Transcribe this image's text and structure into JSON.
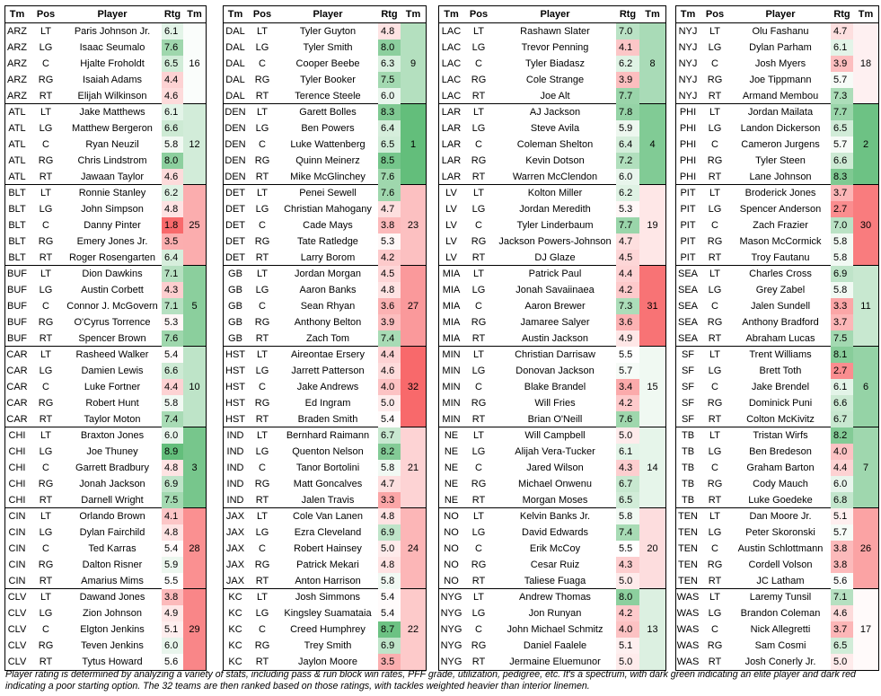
{
  "headers": {
    "tm": "Tm",
    "pos": "Pos",
    "player": "Player",
    "rtg": "Rtg",
    "rank": "Tm"
  },
  "columns": [
    [
      {
        "team": "ARZ",
        "rank": 16,
        "players": [
          [
            "LT",
            "Paris Johnson Jr.",
            "6.1"
          ],
          [
            "LG",
            "Isaac Seumalo",
            "7.6"
          ],
          [
            "C",
            "Hjalte Froholdt",
            "6.5"
          ],
          [
            "RG",
            "Isaiah Adams",
            "4.4"
          ],
          [
            "RT",
            "Elijah Wilkinson",
            "4.6"
          ]
        ]
      },
      {
        "team": "ATL",
        "rank": 12,
        "players": [
          [
            "LT",
            "Jake Matthews",
            "6.1"
          ],
          [
            "LG",
            "Matthew Bergeron",
            "6.6"
          ],
          [
            "C",
            "Ryan Neuzil",
            "5.8"
          ],
          [
            "RG",
            "Chris Lindstrom",
            "8.0"
          ],
          [
            "RT",
            "Jawaan Taylor",
            "4.6"
          ]
        ]
      },
      {
        "team": "BLT",
        "rank": 25,
        "players": [
          [
            "LT",
            "Ronnie Stanley",
            "6.2"
          ],
          [
            "LG",
            "John Simpson",
            "4.8"
          ],
          [
            "C",
            "Danny Pinter",
            "1.8"
          ],
          [
            "RG",
            "Emery Jones Jr.",
            "3.5"
          ],
          [
            "RT",
            "Roger Rosengarten",
            "6.4"
          ]
        ]
      },
      {
        "team": "BUF",
        "rank": 5,
        "players": [
          [
            "LT",
            "Dion Dawkins",
            "7.1"
          ],
          [
            "LG",
            "Austin Corbett",
            "4.3"
          ],
          [
            "C",
            "Connor J. McGovern",
            "7.1"
          ],
          [
            "RG",
            "O'Cyrus Torrence",
            "5.3"
          ],
          [
            "RT",
            "Spencer Brown",
            "7.6"
          ]
        ]
      },
      {
        "team": "CAR",
        "rank": 10,
        "players": [
          [
            "LT",
            "Rasheed Walker",
            "5.4"
          ],
          [
            "LG",
            "Damien Lewis",
            "6.6"
          ],
          [
            "C",
            "Luke Fortner",
            "4.4"
          ],
          [
            "RG",
            "Robert Hunt",
            "5.8"
          ],
          [
            "RT",
            "Taylor Moton",
            "7.4"
          ]
        ]
      },
      {
        "team": "CHI",
        "rank": 3,
        "players": [
          [
            "LT",
            "Braxton Jones",
            "6.0"
          ],
          [
            "LG",
            "Joe Thuney",
            "8.9"
          ],
          [
            "C",
            "Garrett Bradbury",
            "4.8"
          ],
          [
            "RG",
            "Jonah Jackson",
            "6.9"
          ],
          [
            "RT",
            "Darnell Wright",
            "7.5"
          ]
        ]
      },
      {
        "team": "CIN",
        "rank": 28,
        "players": [
          [
            "LT",
            "Orlando Brown",
            "4.1"
          ],
          [
            "LG",
            "Dylan Fairchild",
            "4.8"
          ],
          [
            "C",
            "Ted Karras",
            "5.4"
          ],
          [
            "RG",
            "Dalton Risner",
            "5.9"
          ],
          [
            "RT",
            "Amarius Mims",
            "5.5"
          ]
        ]
      },
      {
        "team": "CLV",
        "rank": 29,
        "players": [
          [
            "LT",
            "Dawand Jones",
            "3.8"
          ],
          [
            "LG",
            "Zion Johnson",
            "4.9"
          ],
          [
            "C",
            "Elgton Jenkins",
            "5.1"
          ],
          [
            "RG",
            "Teven Jenkins",
            "6.0"
          ],
          [
            "RT",
            "Tytus Howard",
            "5.6"
          ]
        ]
      }
    ],
    [
      {
        "team": "DAL",
        "rank": 9,
        "players": [
          [
            "LT",
            "Tyler Guyton",
            "4.8"
          ],
          [
            "LG",
            "Tyler Smith",
            "8.0"
          ],
          [
            "C",
            "Cooper Beebe",
            "6.3"
          ],
          [
            "RG",
            "Tyler Booker",
            "7.5"
          ],
          [
            "RT",
            "Terence Steele",
            "6.0"
          ]
        ]
      },
      {
        "team": "DEN",
        "rank": 1,
        "players": [
          [
            "LT",
            "Garett Bolles",
            "8.3"
          ],
          [
            "LG",
            "Ben Powers",
            "6.4"
          ],
          [
            "C",
            "Luke Wattenberg",
            "6.5"
          ],
          [
            "RG",
            "Quinn Meinerz",
            "8.5"
          ],
          [
            "RT",
            "Mike McGlinchey",
            "7.6"
          ]
        ]
      },
      {
        "team": "DET",
        "rank": 23,
        "players": [
          [
            "LT",
            "Penei Sewell",
            "7.6"
          ],
          [
            "LG",
            "Christian Mahogany",
            "4.7"
          ],
          [
            "C",
            "Cade Mays",
            "3.8"
          ],
          [
            "RG",
            "Tate Ratledge",
            "5.3"
          ],
          [
            "RT",
            "Larry Borom",
            "4.2"
          ]
        ]
      },
      {
        "team": "GB",
        "rank": 27,
        "players": [
          [
            "LT",
            "Jordan Morgan",
            "4.5"
          ],
          [
            "LG",
            "Aaron Banks",
            "4.8"
          ],
          [
            "C",
            "Sean Rhyan",
            "3.6"
          ],
          [
            "RG",
            "Anthony Belton",
            "3.9"
          ],
          [
            "RT",
            "Zach Tom",
            "7.4"
          ]
        ]
      },
      {
        "team": "HST",
        "rank": 32,
        "players": [
          [
            "LT",
            "Aireontae Ersery",
            "4.4"
          ],
          [
            "LG",
            "Jarrett Patterson",
            "4.6"
          ],
          [
            "C",
            "Jake Andrews",
            "4.0"
          ],
          [
            "RG",
            "Ed Ingram",
            "5.0"
          ],
          [
            "RT",
            "Braden Smith",
            "5.4"
          ]
        ]
      },
      {
        "team": "IND",
        "rank": 21,
        "players": [
          [
            "LT",
            "Bernhard Raimann",
            "6.7"
          ],
          [
            "LG",
            "Quenton Nelson",
            "8.2"
          ],
          [
            "C",
            "Tanor Bortolini",
            "5.8"
          ],
          [
            "RG",
            "Matt Goncalves",
            "4.7"
          ],
          [
            "RT",
            "Jalen Travis",
            "3.3"
          ]
        ]
      },
      {
        "team": "JAX",
        "rank": 24,
        "players": [
          [
            "LT",
            "Cole Van Lanen",
            "4.8"
          ],
          [
            "LG",
            "Ezra Cleveland",
            "6.9"
          ],
          [
            "C",
            "Robert Hainsey",
            "5.0"
          ],
          [
            "RG",
            "Patrick Mekari",
            "4.8"
          ],
          [
            "RT",
            "Anton Harrison",
            "5.8"
          ]
        ]
      },
      {
        "team": "KC",
        "rank": 22,
        "players": [
          [
            "LT",
            "Josh Simmons",
            "5.4"
          ],
          [
            "LG",
            "Kingsley Suamataia",
            "5.4"
          ],
          [
            "C",
            "Creed Humphrey",
            "8.7"
          ],
          [
            "RG",
            "Trey Smith",
            "6.9"
          ],
          [
            "RT",
            "Jaylon Moore",
            "3.5"
          ]
        ]
      }
    ],
    [
      {
        "team": "LAC",
        "rank": 8,
        "players": [
          [
            "LT",
            "Rashawn Slater",
            "7.0"
          ],
          [
            "LG",
            "Trevor Penning",
            "4.1"
          ],
          [
            "C",
            "Tyler Biadasz",
            "6.2"
          ],
          [
            "RG",
            "Cole Strange",
            "3.9"
          ],
          [
            "RT",
            "Joe Alt",
            "7.7"
          ]
        ]
      },
      {
        "team": "LAR",
        "rank": 4,
        "players": [
          [
            "LT",
            "AJ Jackson",
            "7.8"
          ],
          [
            "LG",
            "Steve Avila",
            "5.9"
          ],
          [
            "C",
            "Coleman Shelton",
            "6.4"
          ],
          [
            "RG",
            "Kevin Dotson",
            "7.2"
          ],
          [
            "RT",
            "Warren McClendon",
            "6.0"
          ]
        ]
      },
      {
        "team": "LV",
        "rank": 19,
        "players": [
          [
            "LT",
            "Kolton Miller",
            "6.2"
          ],
          [
            "LG",
            "Jordan Meredith",
            "5.3"
          ],
          [
            "C",
            "Tyler Linderbaum",
            "7.7"
          ],
          [
            "RG",
            "Jackson Powers-Johnson",
            "4.7"
          ],
          [
            "RT",
            "DJ Glaze",
            "4.5"
          ]
        ]
      },
      {
        "team": "MIA",
        "rank": 31,
        "players": [
          [
            "LT",
            "Patrick Paul",
            "4.4"
          ],
          [
            "LG",
            "Jonah Savaiinaea",
            "4.2"
          ],
          [
            "C",
            "Aaron Brewer",
            "7.3"
          ],
          [
            "RG",
            "Jamaree Salyer",
            "3.6"
          ],
          [
            "RT",
            "Austin Jackson",
            "4.9"
          ]
        ]
      },
      {
        "team": "MIN",
        "rank": 15,
        "players": [
          [
            "LT",
            "Christian Darrisaw",
            "5.5"
          ],
          [
            "LG",
            "Donovan Jackson",
            "5.7"
          ],
          [
            "C",
            "Blake Brandel",
            "3.4"
          ],
          [
            "RG",
            "Will Fries",
            "4.2"
          ],
          [
            "RT",
            "Brian O'Neill",
            "7.6"
          ]
        ]
      },
      {
        "team": "NE",
        "rank": 14,
        "players": [
          [
            "LT",
            "Will Campbell",
            "5.0"
          ],
          [
            "LG",
            "Alijah Vera-Tucker",
            "6.1"
          ],
          [
            "C",
            "Jared Wilson",
            "4.3"
          ],
          [
            "RG",
            "Michael Onwenu",
            "6.7"
          ],
          [
            "RT",
            "Morgan Moses",
            "6.5"
          ]
        ]
      },
      {
        "team": "NO",
        "rank": 20,
        "players": [
          [
            "LT",
            "Kelvin Banks Jr.",
            "5.8"
          ],
          [
            "LG",
            "David Edwards",
            "7.4"
          ],
          [
            "C",
            "Erik McCoy",
            "5.5"
          ],
          [
            "RG",
            "Cesar Ruiz",
            "4.3"
          ],
          [
            "RT",
            "Taliese Fuaga",
            "5.0"
          ]
        ]
      },
      {
        "team": "NYG",
        "rank": 13,
        "players": [
          [
            "LT",
            "Andrew Thomas",
            "8.0"
          ],
          [
            "LG",
            "Jon Runyan",
            "4.2"
          ],
          [
            "C",
            "John Michael Schmitz",
            "4.0"
          ],
          [
            "RG",
            "Daniel Faalele",
            "5.1"
          ],
          [
            "RT",
            "Jermaine Eluemunor",
            "5.0"
          ]
        ]
      }
    ],
    [
      {
        "team": "NYJ",
        "rank": 18,
        "players": [
          [
            "LT",
            "Olu Fashanu",
            "4.7"
          ],
          [
            "LG",
            "Dylan Parham",
            "6.1"
          ],
          [
            "C",
            "Josh Myers",
            "3.9"
          ],
          [
            "RG",
            "Joe Tippmann",
            "5.7"
          ],
          [
            "RT",
            "Armand Membou",
            "7.3"
          ]
        ]
      },
      {
        "team": "PHI",
        "rank": 2,
        "players": [
          [
            "LT",
            "Jordan Mailata",
            "7.7"
          ],
          [
            "LG",
            "Landon Dickerson",
            "6.5"
          ],
          [
            "C",
            "Cameron Jurgens",
            "5.7"
          ],
          [
            "RG",
            "Tyler Steen",
            "6.6"
          ],
          [
            "RT",
            "Lane Johnson",
            "8.3"
          ]
        ]
      },
      {
        "team": "PIT",
        "rank": 30,
        "players": [
          [
            "LT",
            "Broderick Jones",
            "3.7"
          ],
          [
            "LG",
            "Spencer Anderson",
            "2.7"
          ],
          [
            "C",
            "Zach Frazier",
            "7.0"
          ],
          [
            "RG",
            "Mason McCormick",
            "5.8"
          ],
          [
            "RT",
            "Troy Fautanu",
            "5.8"
          ]
        ]
      },
      {
        "team": "SEA",
        "rank": 11,
        "players": [
          [
            "LT",
            "Charles Cross",
            "6.9"
          ],
          [
            "LG",
            "Grey Zabel",
            "5.8"
          ],
          [
            "C",
            "Jalen Sundell",
            "3.3"
          ],
          [
            "RG",
            "Anthony Bradford",
            "3.7"
          ],
          [
            "RT",
            "Abraham Lucas",
            "7.5"
          ]
        ]
      },
      {
        "team": "SF",
        "rank": 6,
        "players": [
          [
            "LT",
            "Trent Williams",
            "8.1"
          ],
          [
            "LG",
            "Brett Toth",
            "2.7"
          ],
          [
            "C",
            "Jake Brendel",
            "6.1"
          ],
          [
            "RG",
            "Dominick Puni",
            "6.6"
          ],
          [
            "RT",
            "Colton McKivitz",
            "6.7"
          ]
        ]
      },
      {
        "team": "TB",
        "rank": 7,
        "players": [
          [
            "LT",
            "Tristan Wirfs",
            "8.2"
          ],
          [
            "LG",
            "Ben Bredeson",
            "4.0"
          ],
          [
            "C",
            "Graham Barton",
            "4.4"
          ],
          [
            "RG",
            "Cody Mauch",
            "6.0"
          ],
          [
            "RT",
            "Luke Goedeke",
            "6.8"
          ]
        ]
      },
      {
        "team": "TEN",
        "rank": 26,
        "players": [
          [
            "LT",
            "Dan Moore Jr.",
            "5.1"
          ],
          [
            "LG",
            "Peter Skoronski",
            "5.7"
          ],
          [
            "C",
            "Austin Schlottmann",
            "3.8"
          ],
          [
            "RG",
            "Cordell Volson",
            "3.8"
          ],
          [
            "RT",
            "JC Latham",
            "5.6"
          ]
        ]
      },
      {
        "team": "WAS",
        "rank": 17,
        "players": [
          [
            "LT",
            "Laremy Tunsil",
            "7.1"
          ],
          [
            "LG",
            "Brandon Coleman",
            "4.6"
          ],
          [
            "C",
            "Nick Allegretti",
            "3.7"
          ],
          [
            "RG",
            "Sam Cosmi",
            "6.5"
          ],
          [
            "RT",
            "Josh Conerly Jr.",
            "5.0"
          ]
        ]
      }
    ]
  ],
  "footnote": "Player rating is determined by analyzing a variety of stats, including pass & run block win rates, PFF grade, utilization, pedigree, etc. It's a spectrum, with dark green indicating an elite player and dark red indicating a poor starting option. The 32 teams are then ranked based on those ratings, with tackles weighted heavier than interior linemen.",
  "scale": {
    "low_color": "#f8696b",
    "mid_color": "#ffffff",
    "high_color": "#63be7b",
    "low": 1.8,
    "mid": 5.5,
    "high": 8.9,
    "rank_low": 1,
    "rank_high": 32
  }
}
